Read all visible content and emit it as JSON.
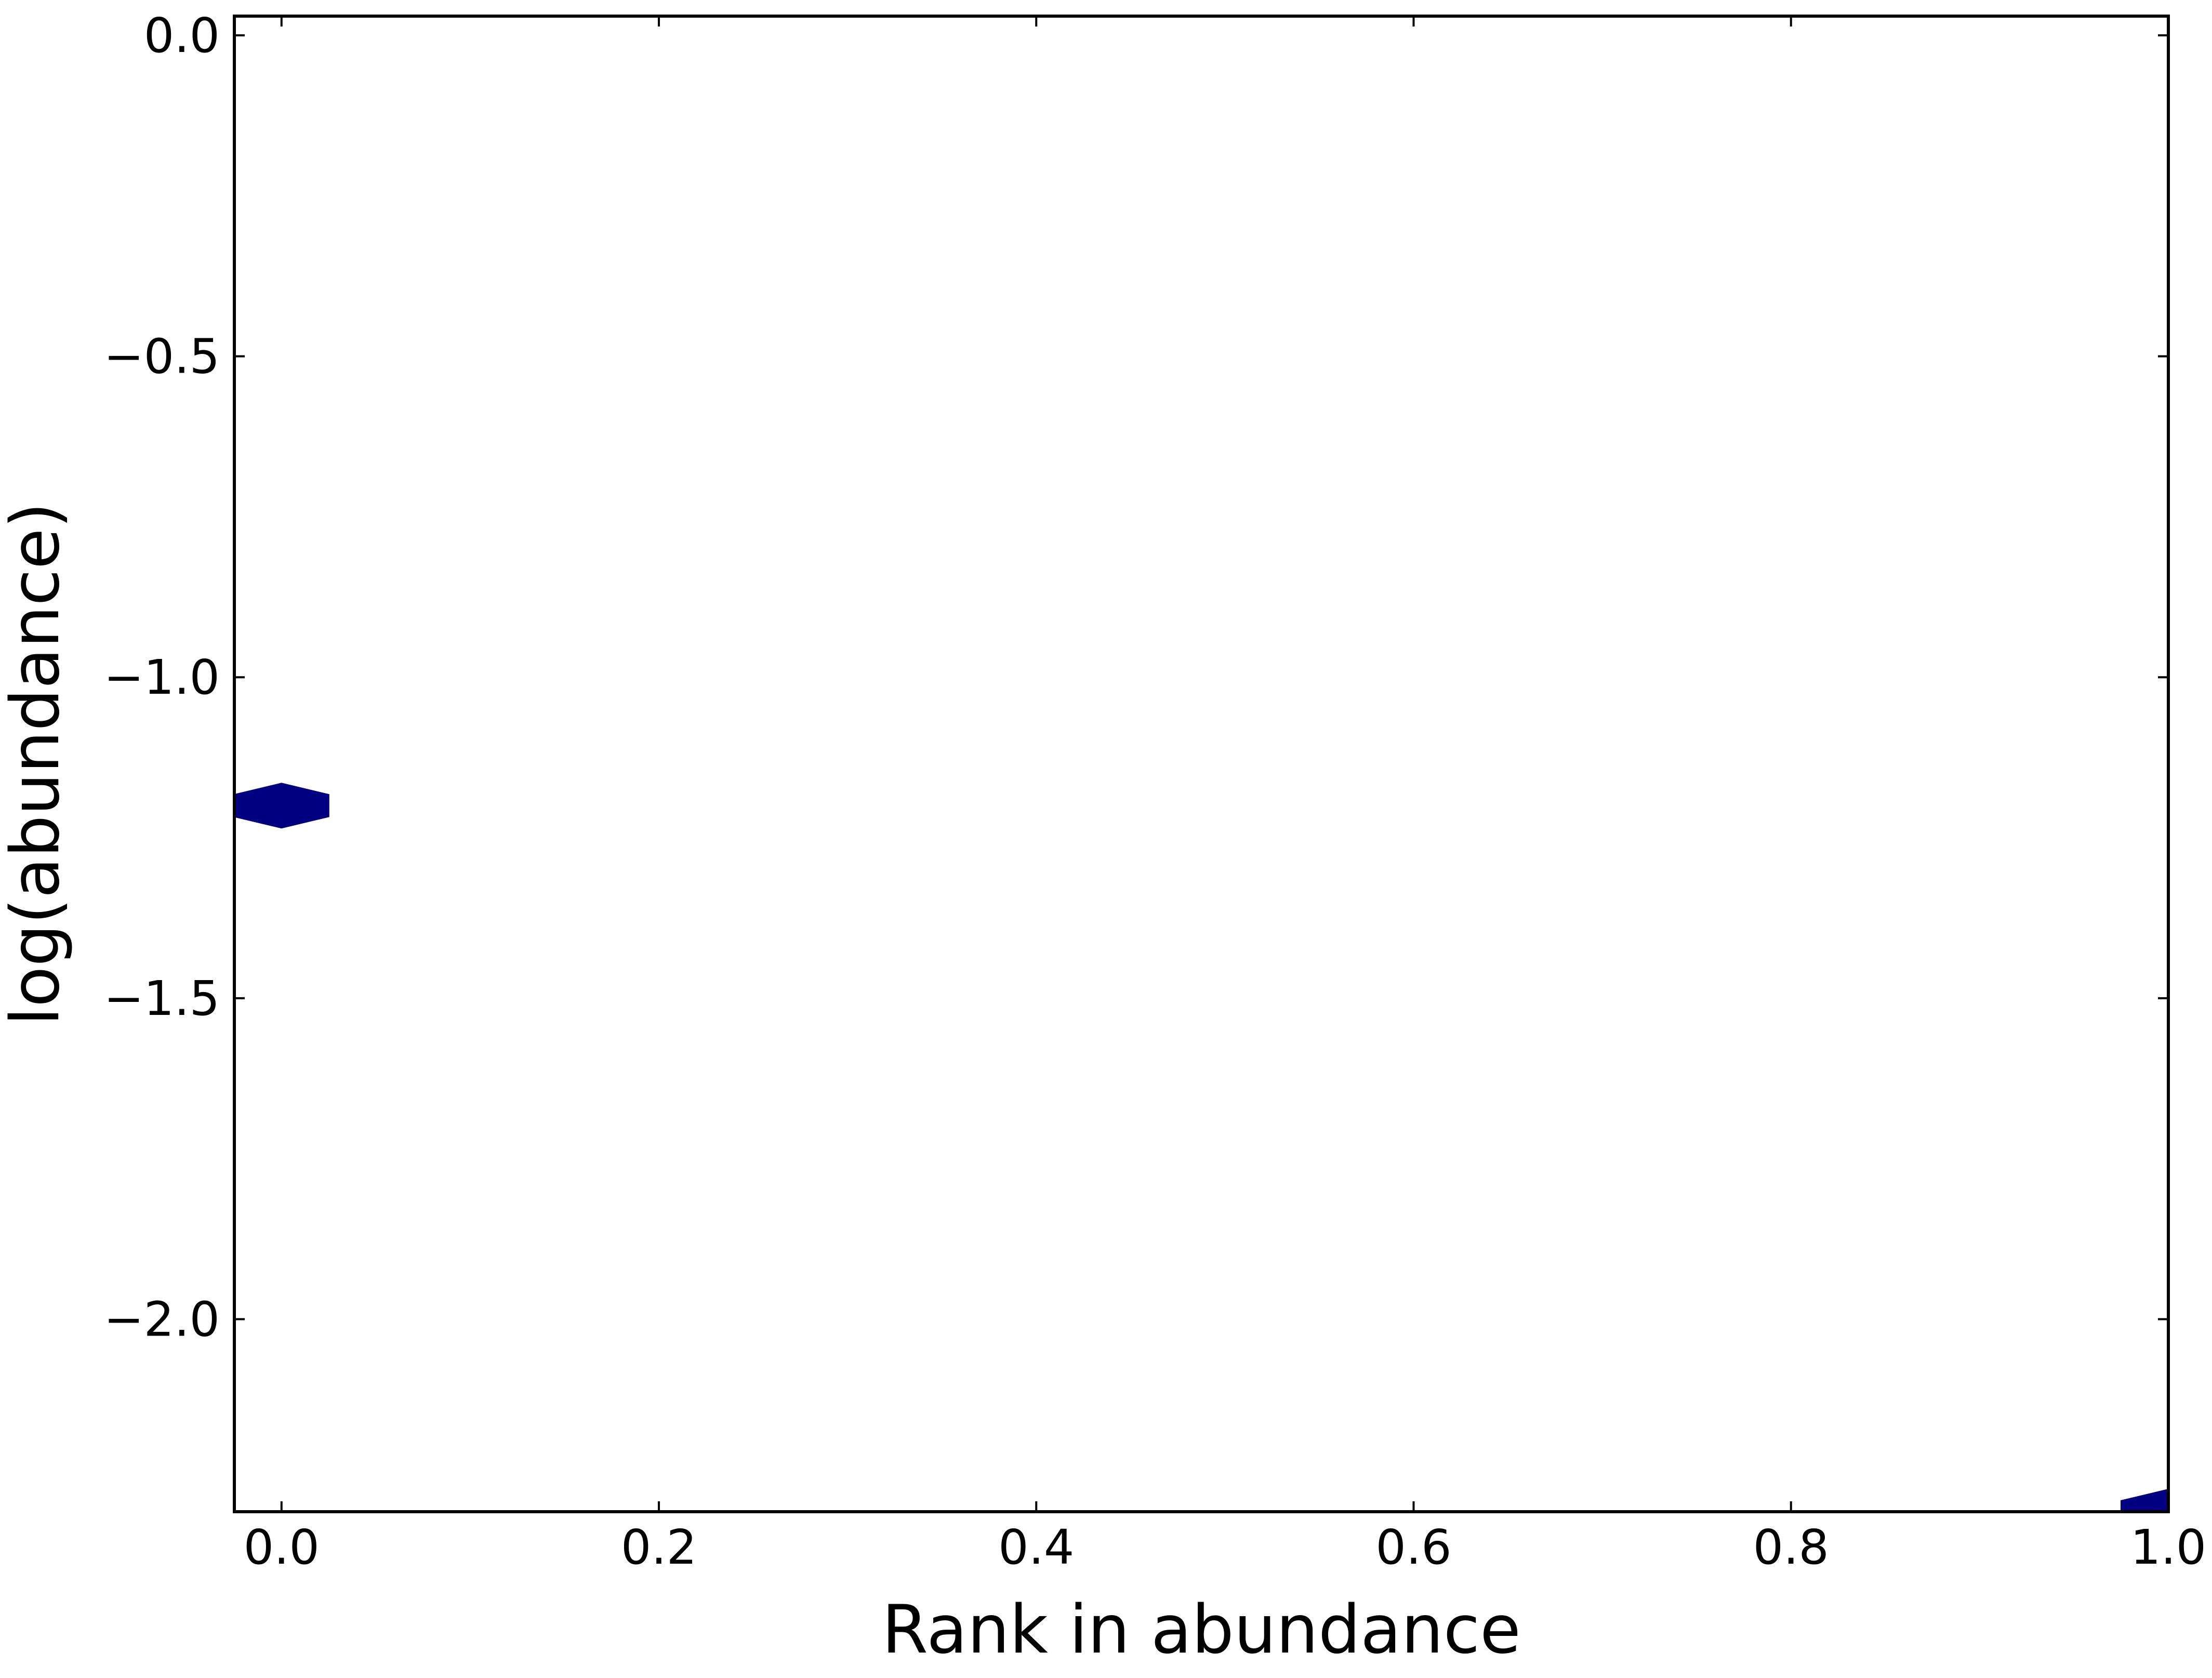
{
  "chart_data": {
    "type": "hexbin",
    "title": "",
    "xlabel": "Rank in abundance",
    "ylabel": "log(abundance)",
    "xlim": [
      -0.025,
      1.0
    ],
    "ylim": [
      -2.3,
      0.03
    ],
    "x_ticks": [
      0.0,
      0.2,
      0.4,
      0.6,
      0.8,
      1.0
    ],
    "x_tick_labels": [
      "0.0",
      "0.2",
      "0.4",
      "0.6",
      "0.8",
      "1.0"
    ],
    "y_ticks": [
      0.0,
      -0.5,
      -1.0,
      -1.5,
      -2.0
    ],
    "y_tick_labels": [
      "0.0",
      "−0.5",
      "−1.0",
      "−1.5",
      "−2.0"
    ],
    "grid": false,
    "points": [
      {
        "x": 0.0,
        "y": -1.2
      },
      {
        "x": 1.0,
        "y": -2.3
      }
    ],
    "color": "#000080"
  }
}
